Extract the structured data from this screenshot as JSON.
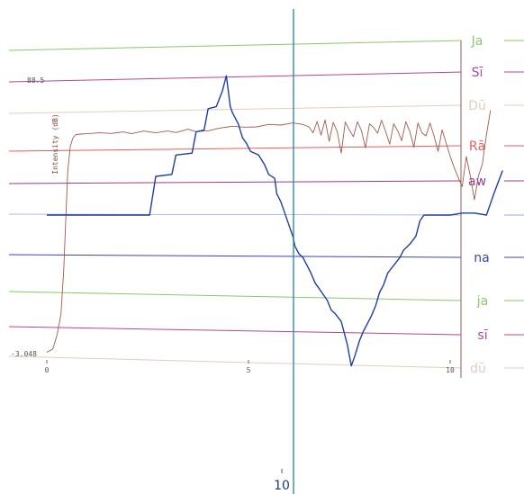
{
  "chart_data": {
    "type": "line",
    "title": "",
    "ylabel": "Intensity (dB)",
    "xlabel": "",
    "y_axis": {
      "max_label": "88.5",
      "min_label": "-3.048",
      "range": [
        -3.048,
        88.5
      ]
    },
    "x_axis": {
      "range": [
        0,
        10
      ],
      "ticks": [
        {
          "value": 0,
          "label": "0"
        },
        {
          "value": 5,
          "label": "5"
        },
        {
          "value": 10,
          "label": "10"
        }
      ]
    },
    "cursor": {
      "label": "10"
    },
    "grid": false,
    "pitch_lines": [
      {
        "label": "Ja",
        "color": "#8bc86a"
      },
      {
        "label": "Sī",
        "color": "#b0479a"
      },
      {
        "label": "Dū",
        "color": "#e4cbbf"
      },
      {
        "label": "Rā",
        "color": "#e06060"
      },
      {
        "label": "aw",
        "color": "#9a3b8f"
      },
      {
        "label": "",
        "color": "#9aa7d4"
      },
      {
        "label": "na",
        "color": "#3a45b0"
      },
      {
        "label": "ja",
        "color": "#8bc86a"
      },
      {
        "label": "sī",
        "color": "#b0479a"
      },
      {
        "label": "dū",
        "color": "#e4cbbf"
      }
    ],
    "series": [
      {
        "role": "intensity",
        "color": "#a05a48",
        "points": [
          [
            0.0,
            -2.6
          ],
          [
            0.15,
            -1.5
          ],
          [
            0.25,
            3
          ],
          [
            0.35,
            10
          ],
          [
            0.42,
            25
          ],
          [
            0.48,
            45
          ],
          [
            0.52,
            58
          ],
          [
            0.58,
            66
          ],
          [
            0.65,
            69
          ],
          [
            0.72,
            70
          ],
          [
            0.85,
            70.2
          ],
          [
            1.0,
            70.3
          ],
          [
            1.3,
            70.6
          ],
          [
            1.6,
            70.4
          ],
          [
            1.9,
            70.9
          ],
          [
            2.1,
            70.3
          ],
          [
            2.4,
            71.2
          ],
          [
            2.7,
            70.6
          ],
          [
            3.0,
            71.2
          ],
          [
            3.2,
            70.7
          ],
          [
            3.5,
            71.8
          ],
          [
            3.7,
            71.0
          ],
          [
            4.0,
            71.3
          ],
          [
            4.3,
            72.2
          ],
          [
            4.6,
            72.8
          ],
          [
            4.9,
            72.5
          ],
          [
            5.2,
            72.6
          ],
          [
            5.5,
            73.4
          ],
          [
            5.8,
            73.2
          ],
          [
            6.1,
            73.9
          ],
          [
            6.35,
            73.4
          ],
          [
            6.5,
            72.6
          ],
          [
            6.6,
            70.6
          ],
          [
            6.7,
            74.4
          ],
          [
            6.8,
            69.8
          ],
          [
            6.9,
            74.9
          ],
          [
            7.0,
            67.8
          ],
          [
            7.1,
            74.1
          ],
          [
            7.2,
            71.0
          ],
          [
            7.3,
            63.8
          ],
          [
            7.4,
            74.2
          ],
          [
            7.5,
            71.6
          ],
          [
            7.6,
            69.3
          ],
          [
            7.7,
            74.3
          ],
          [
            7.8,
            71.4
          ],
          [
            7.9,
            65.6
          ],
          [
            8.0,
            73.6
          ],
          [
            8.1,
            72.4
          ],
          [
            8.2,
            70.5
          ],
          [
            8.3,
            74.8
          ],
          [
            8.4,
            71.1
          ],
          [
            8.5,
            66.8
          ],
          [
            8.6,
            73.6
          ],
          [
            8.7,
            71.2
          ],
          [
            8.8,
            68.0
          ],
          [
            8.9,
            74.3
          ],
          [
            9.0,
            71.0
          ],
          [
            9.1,
            65.8
          ],
          [
            9.2,
            73.9
          ],
          [
            9.3,
            70.6
          ],
          [
            9.4,
            69.6
          ],
          [
            9.5,
            73.9
          ],
          [
            9.6,
            69.5
          ],
          [
            9.7,
            64.4
          ],
          [
            9.8,
            71.6
          ],
          [
            9.9,
            67.2
          ],
          [
            10.0,
            62.8
          ],
          [
            10.1,
            59.0
          ],
          [
            10.2,
            55.7
          ],
          [
            10.3,
            52.7
          ],
          [
            10.4,
            62.7
          ],
          [
            10.5,
            56.2
          ],
          [
            10.6,
            48.3
          ],
          [
            10.7,
            56.2
          ],
          [
            10.8,
            60.3
          ],
          [
            10.9,
            70.0
          ],
          [
            11.0,
            78.1
          ]
        ]
      },
      {
        "role": "pitch",
        "color": "#1f3fa0",
        "points": [
          [
            0.0,
            0.0
          ],
          [
            0.5,
            0.0
          ],
          [
            1.0,
            0.0
          ],
          [
            1.5,
            0.0
          ],
          [
            2.0,
            0.0
          ],
          [
            2.55,
            0.0
          ],
          [
            2.7,
            1.0
          ],
          [
            3.1,
            1.05
          ],
          [
            3.2,
            1.55
          ],
          [
            3.6,
            1.6
          ],
          [
            3.7,
            2.15
          ],
          [
            3.9,
            2.2
          ],
          [
            4.0,
            2.75
          ],
          [
            4.2,
            2.8
          ],
          [
            4.35,
            3.2
          ],
          [
            4.45,
            3.6
          ],
          [
            4.55,
            2.8
          ],
          [
            4.6,
            2.65
          ],
          [
            4.75,
            2.35
          ],
          [
            4.85,
            2.0
          ],
          [
            4.95,
            1.85
          ],
          [
            5.05,
            1.65
          ],
          [
            5.25,
            1.55
          ],
          [
            5.4,
            1.3
          ],
          [
            5.5,
            1.05
          ],
          [
            5.65,
            0.95
          ],
          [
            5.7,
            0.55
          ],
          [
            5.8,
            0.35
          ],
          [
            5.9,
            0.05
          ],
          [
            6.0,
            -0.25
          ],
          [
            6.1,
            -0.55
          ],
          [
            6.15,
            -0.8
          ],
          [
            6.25,
            -1.0
          ],
          [
            6.35,
            -1.1
          ],
          [
            6.45,
            -1.3
          ],
          [
            6.55,
            -1.5
          ],
          [
            6.65,
            -1.75
          ],
          [
            6.75,
            -1.9
          ],
          [
            6.85,
            -2.05
          ],
          [
            6.95,
            -2.2
          ],
          [
            7.05,
            -2.45
          ],
          [
            7.15,
            -2.55
          ],
          [
            7.3,
            -2.75
          ],
          [
            7.45,
            -3.35
          ],
          [
            7.55,
            -3.9
          ],
          [
            7.65,
            -3.6
          ],
          [
            7.75,
            -3.25
          ],
          [
            7.85,
            -3.0
          ],
          [
            7.95,
            -2.8
          ],
          [
            8.05,
            -2.6
          ],
          [
            8.15,
            -2.35
          ],
          [
            8.25,
            -2.0
          ],
          [
            8.35,
            -1.8
          ],
          [
            8.45,
            -1.5
          ],
          [
            8.6,
            -1.3
          ],
          [
            8.75,
            -1.1
          ],
          [
            8.85,
            -0.9
          ],
          [
            9.0,
            -0.75
          ],
          [
            9.15,
            -0.55
          ],
          [
            9.25,
            -0.15
          ],
          [
            9.35,
            0.0
          ],
          [
            9.5,
            0.0
          ],
          [
            9.7,
            0.0
          ],
          [
            10.0,
            0.0
          ],
          [
            10.3,
            0.05
          ],
          [
            10.6,
            0.05
          ],
          [
            10.9,
            0.0
          ],
          [
            11.1,
            0.6
          ],
          [
            11.3,
            1.15
          ]
        ]
      }
    ]
  }
}
